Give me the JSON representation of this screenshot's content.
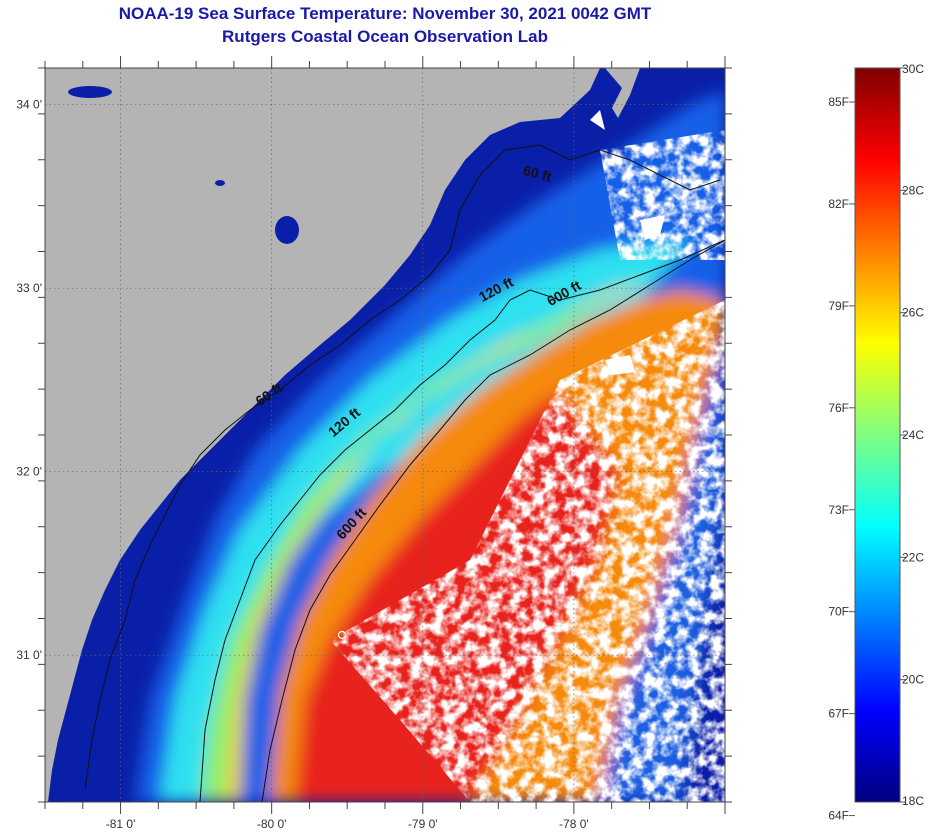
{
  "header": {
    "title": "NOAA-19 Sea Surface Temperature:  November 30, 2021 0042 GMT",
    "subtitle": "Rutgers Coastal Ocean Observation Lab"
  },
  "map": {
    "lon_range": [
      -81.5,
      -77.0
    ],
    "lat_range": [
      30.2,
      34.2
    ],
    "lon_ticks": [
      {
        "value": -81,
        "label": "-81 0'"
      },
      {
        "value": -80,
        "label": "-80 0'"
      },
      {
        "value": -79,
        "label": "-79 0'"
      },
      {
        "value": -78,
        "label": "-78 0'"
      }
    ],
    "lat_ticks": [
      {
        "value": 34,
        "label": "34 0'"
      },
      {
        "value": 33,
        "label": "33 0'"
      },
      {
        "value": 32,
        "label": "32 0'"
      },
      {
        "value": 31,
        "label": "31 0'"
      }
    ],
    "land_color": "#b4b4b4",
    "cloud_color": "#ffffff",
    "contours": [
      {
        "depth": "60 ft",
        "label": "60 ft"
      },
      {
        "depth": "120 ft",
        "label": "120 ft"
      },
      {
        "depth": "600 ft",
        "label": "600 ft"
      }
    ],
    "contour_labels": [
      {
        "text": "60 ft",
        "lon": -78.25,
        "lat": 33.6,
        "angle": 15
      },
      {
        "text": "120 ft",
        "lon": -78.5,
        "lat": 32.97,
        "angle": -28
      },
      {
        "text": "600 ft",
        "lon": -78.05,
        "lat": 32.95,
        "angle": -30
      },
      {
        "text": "60 ft",
        "lon": -80.0,
        "lat": 32.4,
        "angle": -35
      },
      {
        "text": "120 ft",
        "lon": -79.5,
        "lat": 32.25,
        "angle": -40
      },
      {
        "text": "600 ft",
        "lon": -79.45,
        "lat": 31.7,
        "angle": -48
      }
    ]
  },
  "colorbar": {
    "celsius_range": [
      18,
      30
    ],
    "fahrenheit_labels": [
      "85F",
      "82F",
      "79F",
      "76F",
      "73F",
      "70F",
      "67F",
      "64F"
    ],
    "celsius_labels": [
      "30C",
      "28C",
      "26C",
      "24C",
      "22C",
      "20C",
      "18C"
    ],
    "colors": [
      "#00007f",
      "#0000ff",
      "#0080ff",
      "#00ffff",
      "#80ff80",
      "#ffff00",
      "#ff8000",
      "#ff0000",
      "#7f0000"
    ]
  }
}
